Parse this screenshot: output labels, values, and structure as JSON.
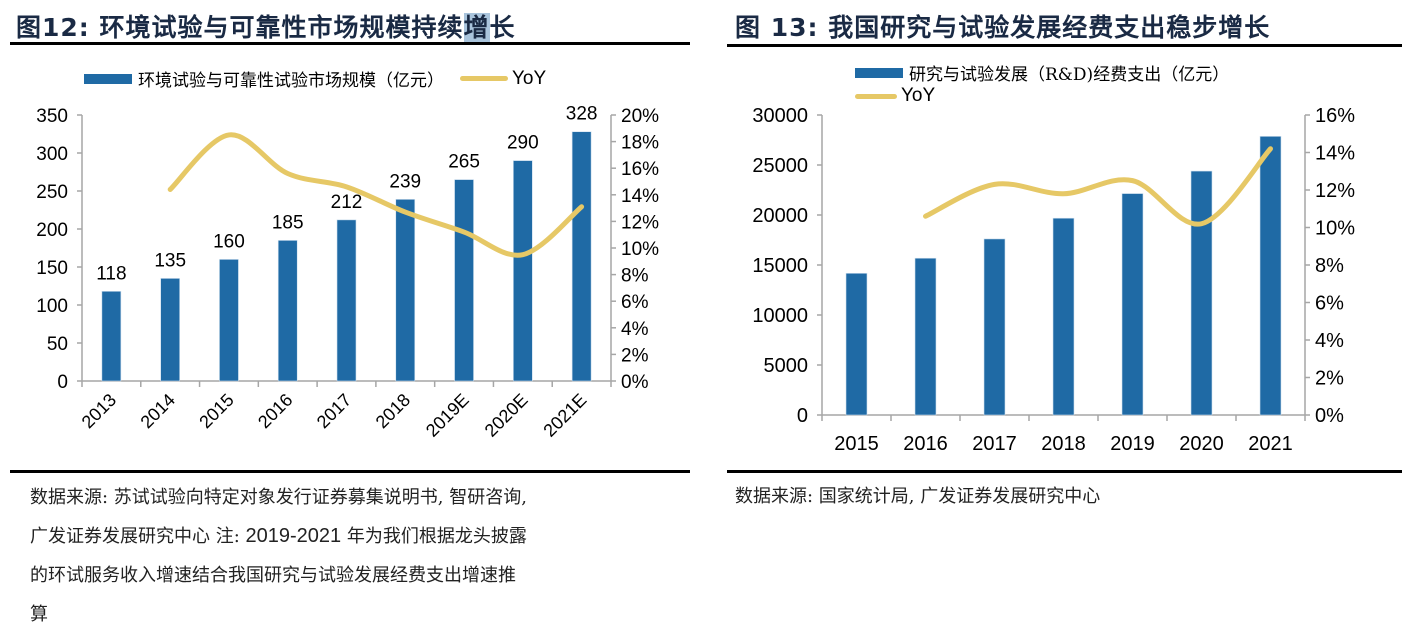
{
  "figures": [
    {
      "label": "图12:",
      "title_main": "环境试验与可靠性市场规模持续",
      "title_highlight": "增",
      "title_tail": "长",
      "legend_bar": "环境试验与可靠性试验市场规模（亿元）",
      "legend_line": "YoY",
      "source_line1": "数据来源: 苏试试验向特定对象发行证券募集说明书, 智研咨询,",
      "source_line2_a": "广发证券发展研究中心  注: ",
      "source_line2_num": "2019-2021",
      "source_line2_b": " 年为我们根据龙头披露",
      "source_line3": "的环试服务收入增速结合我国研究与试验发展经费支出增速推",
      "source_line4": "算"
    },
    {
      "label": "图 13:",
      "title_main": "我国研究与试验发展经费支出稳步增长",
      "legend_bar": "研究与试验发展（R&D)经费支出（亿元）",
      "legend_line": "YoY",
      "source_line1": "数据来源: 国家统计局, 广发证券发展研究中心"
    }
  ],
  "colors": {
    "bar": "#1f6aa5",
    "line": "#e6c866",
    "axis": "#a6a6a6"
  },
  "chart_data": [
    {
      "type": "bar",
      "title": "环境试验与可靠性市场规模持续增长",
      "categories": [
        "2013",
        "2014",
        "2015",
        "2016",
        "2017",
        "2018",
        "2019E",
        "2020E",
        "2021E"
      ],
      "series": [
        {
          "name": "环境试验与可靠性试验市场规模（亿元）",
          "type": "bar",
          "axis": "left",
          "values": [
            118,
            135,
            160,
            185,
            212,
            239,
            265,
            290,
            328
          ]
        },
        {
          "name": "YoY",
          "type": "line",
          "axis": "right",
          "values": [
            null,
            14.4,
            18.5,
            15.6,
            14.6,
            12.7,
            11.2,
            9.5,
            13.1
          ]
        }
      ],
      "data_labels": [
        "118",
        "135",
        "160",
        "185",
        "212",
        "239",
        "265",
        "290",
        "328"
      ],
      "ylim": [
        0,
        350
      ],
      "yticks": [
        "0",
        "50",
        "100",
        "150",
        "200",
        "250",
        "300",
        "350"
      ],
      "y2lim": [
        0,
        20
      ],
      "y2ticks": [
        "0%",
        "2%",
        "4%",
        "6%",
        "8%",
        "10%",
        "12%",
        "14%",
        "16%",
        "18%",
        "20%"
      ],
      "xlabel_rotation": "45deg",
      "legend": "top",
      "grid": false
    },
    {
      "type": "bar",
      "title": "我国研究与试验发展经费支出稳步增长",
      "categories": [
        "2015",
        "2016",
        "2017",
        "2018",
        "2019",
        "2020",
        "2021"
      ],
      "series": [
        {
          "name": "研究与试验发展（R&D)经费支出（亿元）",
          "type": "bar",
          "axis": "left",
          "values": [
            14170,
            15677,
            17606,
            19678,
            22144,
            24393,
            27864
          ]
        },
        {
          "name": "YoY",
          "type": "line",
          "axis": "right",
          "values": [
            null,
            10.6,
            12.3,
            11.8,
            12.5,
            10.2,
            14.2
          ]
        }
      ],
      "ylim": [
        0,
        30000
      ],
      "yticks": [
        "0",
        "5000",
        "10000",
        "15000",
        "20000",
        "25000",
        "30000"
      ],
      "y2lim": [
        0,
        16
      ],
      "y2ticks": [
        "0%",
        "2%",
        "4%",
        "6%",
        "8%",
        "10%",
        "12%",
        "14%",
        "16%"
      ],
      "legend": "top",
      "grid": false
    }
  ]
}
